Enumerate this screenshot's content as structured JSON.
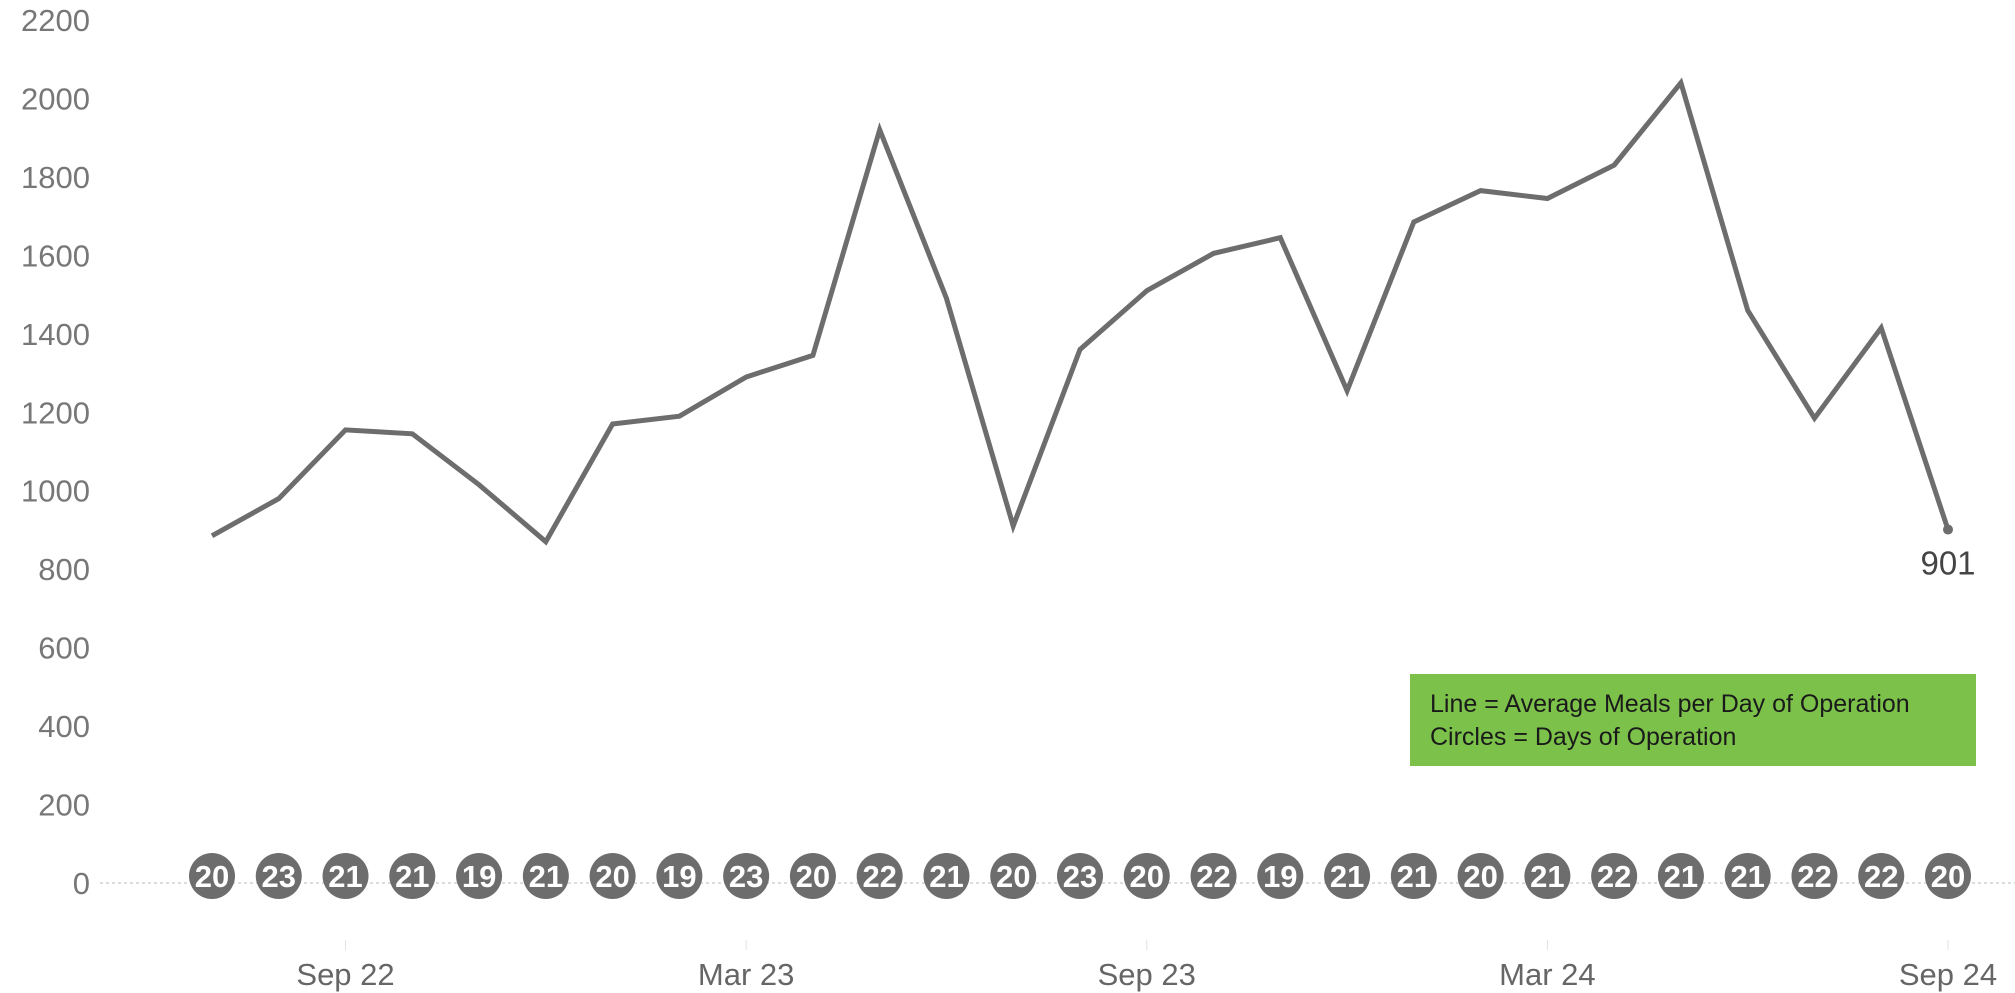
{
  "chart_data": {
    "type": "line",
    "title": "",
    "xlabel": "",
    "ylabel": "",
    "ylim": [
      0,
      2200
    ],
    "yticks": [
      0,
      200,
      400,
      600,
      800,
      1000,
      1200,
      1400,
      1600,
      1800,
      2000,
      2200
    ],
    "x_tick_labels": [
      "Sep 22",
      "Mar 23",
      "Sep 23",
      "Mar 24",
      "Sep 24"
    ],
    "x": [
      "2022-07",
      "2022-08",
      "2022-09",
      "2022-10",
      "2022-11",
      "2022-12",
      "2023-01",
      "2023-02",
      "2023-03",
      "2023-04",
      "2023-05",
      "2023-06",
      "2023-07",
      "2023-08",
      "2023-09",
      "2023-10",
      "2023-11",
      "2023-12",
      "2024-01",
      "2024-02",
      "2024-03",
      "2024-04",
      "2024-05",
      "2024-06",
      "2024-07",
      "2024-08",
      "2024-09"
    ],
    "series": [
      {
        "values": [
          885,
          980,
          1155,
          1145,
          1015,
          870,
          1170,
          1190,
          1290,
          1345,
          1920,
          1490,
          910,
          1360,
          1510,
          1605,
          1645,
          1255,
          1685,
          1765,
          1745,
          1830,
          2040,
          1460,
          1185,
          1415,
          901
        ]
      },
      {
        "values": [
          20,
          23,
          21,
          21,
          19,
          21,
          20,
          19,
          23,
          20,
          22,
          21,
          20,
          23,
          20,
          22,
          19,
          21,
          21,
          20,
          21,
          22,
          21,
          21,
          22,
          22,
          20
        ]
      }
    ],
    "annotations": [
      {
        "text": "901"
      }
    ],
    "legend": {
      "position": "bottom-right",
      "lines": [
        "Line = Average Meals per Day of Operation",
        "Circles = Days of Operation"
      ]
    },
    "grid": false,
    "colors": {
      "line": "#6d6d6d",
      "circle": "#6d6d6d",
      "legend_bg": "#7cc24a"
    }
  }
}
